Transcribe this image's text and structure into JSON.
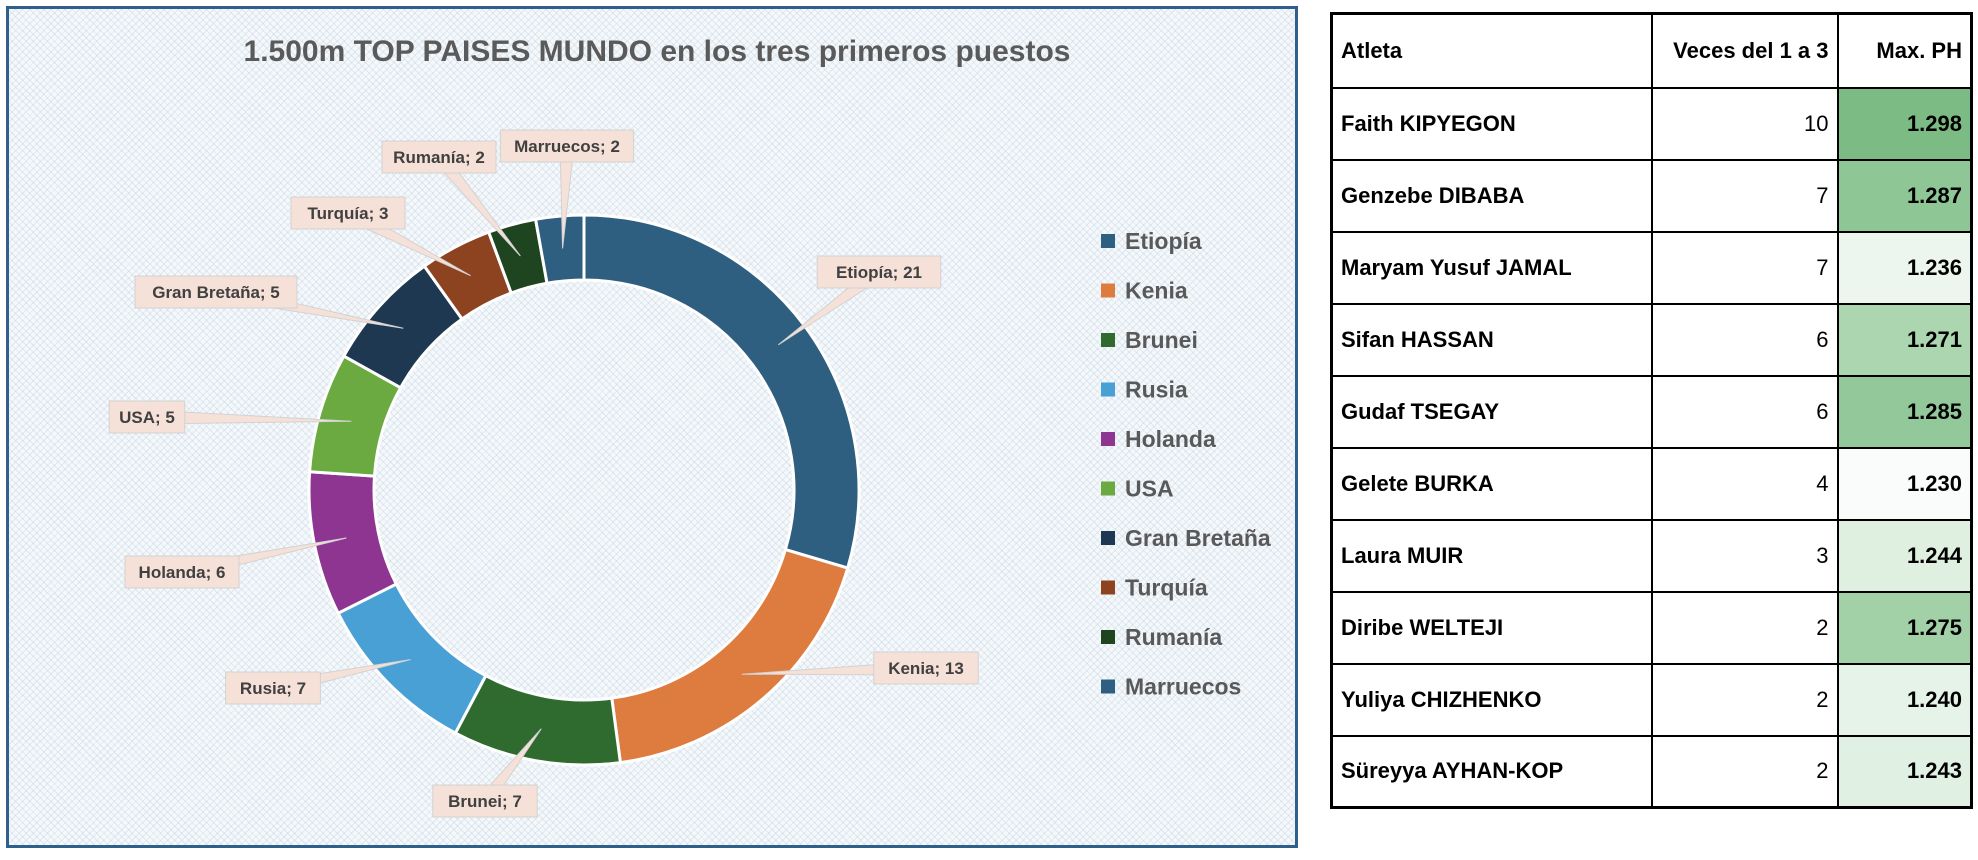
{
  "chart_data": {
    "type": "pie",
    "variant": "doughnut",
    "title": "1.500m TOP PAISES MUNDO en los tres primeros puestos",
    "categories": [
      "Etiopía",
      "Kenia",
      "Brunei",
      "Rusia",
      "Holanda",
      "USA",
      "Gran Bretaña",
      "Turquía",
      "Rumanía",
      "Marruecos"
    ],
    "values": [
      21,
      13,
      7,
      7,
      6,
      5,
      5,
      3,
      2,
      2
    ],
    "data_labels": [
      "Etiopía; 21",
      "Kenia; 13",
      "Brunei; 7",
      "Rusia; 7",
      "Holanda; 6",
      "USA; 5",
      "Gran Bretaña; 5",
      "Turquía; 3",
      "Rumanía; 2",
      "Marruecos; 2"
    ],
    "colors": [
      "#2e5f80",
      "#de7b3e",
      "#2f6b2f",
      "#48a0d4",
      "#8e3592",
      "#6aaa40",
      "#1d3850",
      "#8e4320",
      "#1f4520",
      "#2e5f80"
    ],
    "legend_position": "right"
  },
  "table": {
    "headers": [
      "Atleta",
      "Veces del 1 a 3",
      "Max. PH"
    ],
    "rows": [
      {
        "name": "Faith KIPYEGON",
        "times": "10",
        "max": "1.298",
        "bg": "#7dbb85"
      },
      {
        "name": "Genzebe DIBABA",
        "times": "7",
        "max": "1.287",
        "bg": "#8fc696"
      },
      {
        "name": "Maryam Yusuf JAMAL",
        "times": "7",
        "max": "1.236",
        "bg": "#edf6ee"
      },
      {
        "name": "Sifan HASSAN",
        "times": "6",
        "max": "1.271",
        "bg": "#abd6b0"
      },
      {
        "name": "Gudaf TSEGAY",
        "times": "6",
        "max": "1.285",
        "bg": "#93c99a"
      },
      {
        "name": "Gelete BURKA",
        "times": "4",
        "max": "1.230",
        "bg": "#f9fcfa"
      },
      {
        "name": "Laura MUIR",
        "times": "3",
        "max": "1.244",
        "bg": "#dff0e1"
      },
      {
        "name": "Diribe WELTEJI",
        "times": "2",
        "max": "1.275",
        "bg": "#a2d1a8"
      },
      {
        "name": "Yuliya CHIZHENKO",
        "times": "2",
        "max": "1.240",
        "bg": "#e6f3e8"
      },
      {
        "name": "Süreyya AYHAN-KOP",
        "times": "2",
        "max": "1.243",
        "bg": "#e0f0e2"
      }
    ]
  }
}
